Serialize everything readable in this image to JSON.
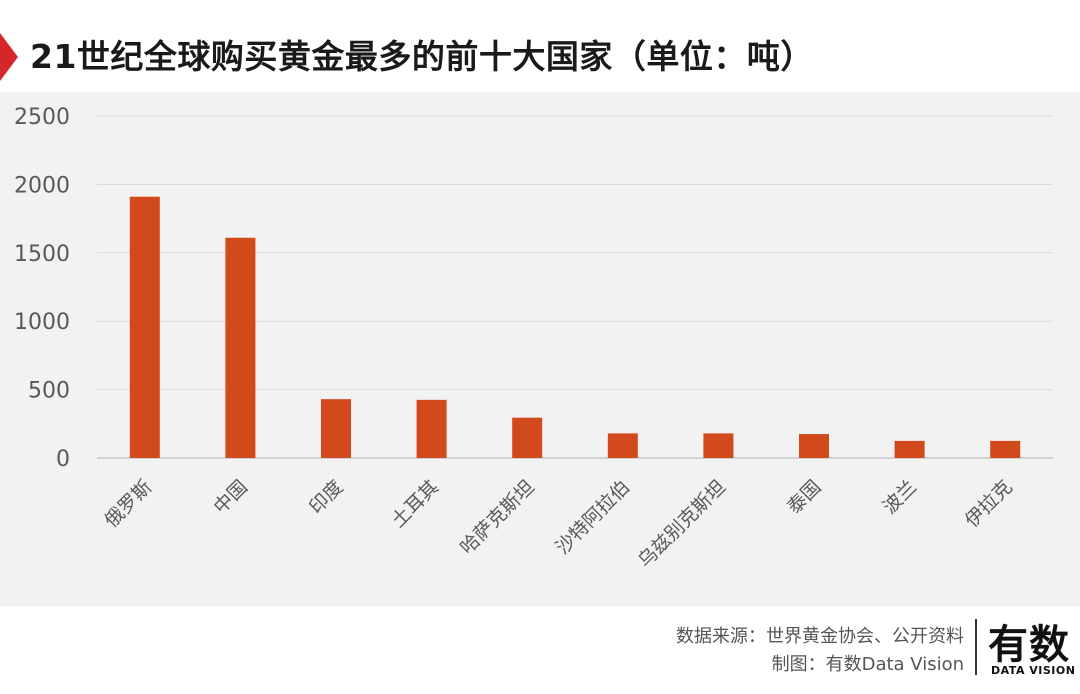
{
  "title": "21世纪全球购买黄金最多的前十大国家（单位：吨）",
  "source_line": "数据来源：世界黄金协会、公开资料",
  "maker_line": "制图：有数Data Vision",
  "logo": {
    "cn": "有数",
    "en": "DATA VISION"
  },
  "colors": {
    "bar": "#d24a1c",
    "accent": "#d7262b"
  },
  "chart_data": {
    "type": "bar",
    "title": "21世纪全球购买黄金最多的前十大国家（单位：吨）",
    "categories": [
      "俄罗斯",
      "中国",
      "印度",
      "土耳其",
      "哈萨克斯坦",
      "沙特阿拉伯",
      "乌兹别克斯坦",
      "泰国",
      "波兰",
      "伊拉克"
    ],
    "values": [
      1910,
      1610,
      430,
      425,
      295,
      180,
      180,
      175,
      125,
      125
    ],
    "ylim": [
      0,
      2500
    ],
    "yticks": [
      0,
      500,
      1000,
      1500,
      2000,
      2500
    ],
    "grid": true,
    "legend": "none"
  }
}
